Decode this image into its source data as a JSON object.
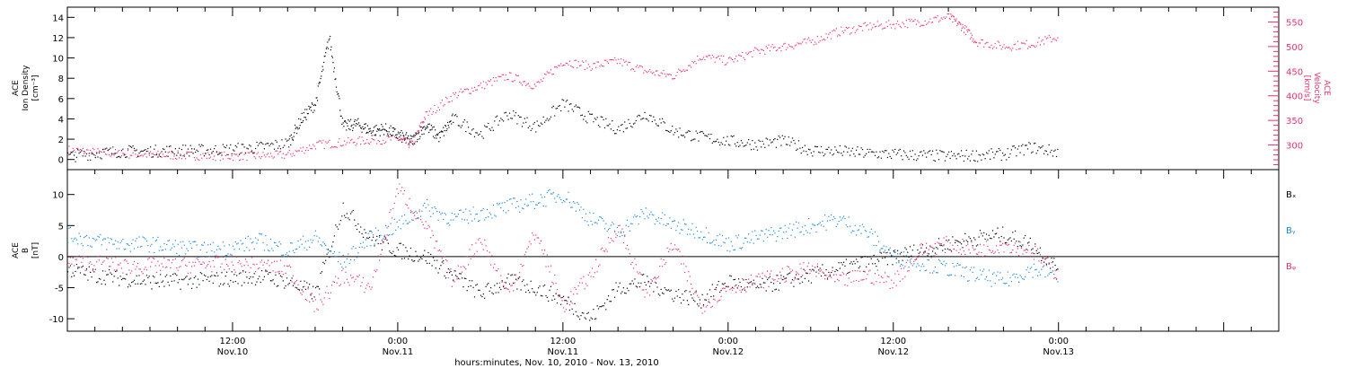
{
  "colors": {
    "black": "#000000",
    "pink": "#e8336b",
    "blue": "#1f86d9"
  },
  "time_axis": {
    "start_hour": 0,
    "end_hour": 88,
    "xlabel": "hours:minutes, Nov. 10, 2010 - Nov. 13, 2010",
    "major_ticks": [
      {
        "time": "12:00",
        "date": "Nov.10",
        "hour": 12
      },
      {
        "time": "0:00",
        "date": "Nov.11",
        "hour": 24
      },
      {
        "time": "12:00",
        "date": "Nov.11",
        "hour": 36
      },
      {
        "time": "0:00",
        "date": "Nov.12",
        "hour": 48
      },
      {
        "time": "12:00",
        "date": "Nov.12",
        "hour": 60
      },
      {
        "time": "0:00",
        "date": "Nov.13",
        "hour": 72
      }
    ]
  },
  "chart_data": [
    {
      "type": "scatter",
      "panel": "top",
      "ylabel": [
        "ACE",
        "Ion Density",
        "[cm⁻³]"
      ],
      "ylim": [
        -1,
        15
      ],
      "yticks": [
        0,
        2,
        4,
        6,
        8,
        10,
        12,
        14
      ],
      "y2label": [
        "ACE",
        "Velocity",
        "[km/s]"
      ],
      "y2lim": [
        250,
        580
      ],
      "y2ticks": [
        300,
        350,
        400,
        450,
        500,
        550
      ],
      "series": [
        {
          "color": "black",
          "axis": "left",
          "x": [
            0,
            2,
            4,
            6,
            8,
            10,
            12,
            14,
            16,
            17,
            18,
            19,
            20,
            21,
            22,
            23,
            24,
            25,
            26,
            27,
            28,
            30,
            32,
            34,
            36,
            38,
            40,
            42,
            44,
            46,
            48,
            50,
            52,
            54,
            56,
            58,
            60,
            62,
            64,
            66,
            68,
            70,
            72
          ],
          "y": [
            0.3,
            0.6,
            0.8,
            0.8,
            0.9,
            0.9,
            1.0,
            1.2,
            1.6,
            4.0,
            5.5,
            12.0,
            3.2,
            3.5,
            2.8,
            3.0,
            2.4,
            1.8,
            3.3,
            2.2,
            4.0,
            2.5,
            4.5,
            3.2,
            5.5,
            4.0,
            3.0,
            4.5,
            2.8,
            2.2,
            1.8,
            1.5,
            1.8,
            0.9,
            0.8,
            0.6,
            0.5,
            0.4,
            0.3,
            0.4,
            0.5,
            1.2,
            0.7
          ]
        },
        {
          "color": "pink",
          "axis": "right",
          "x": [
            0,
            2,
            4,
            6,
            8,
            10,
            12,
            14,
            16,
            18,
            20,
            22,
            24,
            25,
            26,
            28,
            30,
            32,
            34,
            36,
            38,
            40,
            42,
            44,
            46,
            48,
            50,
            52,
            54,
            56,
            58,
            60,
            62,
            64,
            65,
            66,
            68,
            70,
            72
          ],
          "y": [
            290,
            285,
            282,
            280,
            279,
            278,
            277,
            278,
            280,
            300,
            305,
            310,
            312,
            300,
            360,
            400,
            420,
            440,
            420,
            470,
            460,
            470,
            450,
            440,
            480,
            470,
            490,
            500,
            510,
            530,
            540,
            545,
            550,
            560,
            540,
            510,
            500,
            505,
            520
          ]
        }
      ]
    },
    {
      "type": "scatter",
      "panel": "bottom",
      "ylabel": [
        "ACE",
        "B",
        "[nT]"
      ],
      "ylim": [
        -12,
        14
      ],
      "yticks": [
        -10,
        -5,
        0,
        5,
        10
      ],
      "series": [
        {
          "name": "Bₓ",
          "color": "black",
          "x": [
            0,
            2,
            4,
            6,
            8,
            10,
            12,
            14,
            16,
            18,
            20,
            22,
            24,
            26,
            28,
            30,
            32,
            34,
            36,
            38,
            40,
            42,
            44,
            46,
            48,
            50,
            52,
            54,
            56,
            58,
            60,
            62,
            64,
            66,
            68,
            70,
            72
          ],
          "y": [
            -2,
            -3,
            -3.5,
            -4,
            -4,
            -3.8,
            -3.5,
            -3.2,
            -4,
            -6,
            8,
            3,
            1,
            0,
            -3,
            -6,
            -4,
            -5,
            -7,
            -10,
            -5,
            -4,
            -6,
            -7,
            -4,
            -5,
            -4,
            -3,
            -2,
            -1,
            0,
            1,
            2,
            3,
            3.5,
            2,
            -2
          ]
        },
        {
          "name": "Bᵧ",
          "color": "blue",
          "x": [
            0,
            2,
            4,
            6,
            8,
            10,
            12,
            14,
            16,
            18,
            20,
            22,
            24,
            26,
            28,
            30,
            32,
            34,
            36,
            38,
            40,
            42,
            44,
            46,
            48,
            50,
            52,
            54,
            56,
            58,
            60,
            62,
            64,
            66,
            68,
            70,
            72
          ],
          "y": [
            3.5,
            2.5,
            2,
            2,
            1.5,
            1,
            1.5,
            2.5,
            1,
            3,
            -1,
            3,
            5,
            8,
            6,
            7,
            8,
            9,
            10,
            6,
            4,
            7,
            5,
            4,
            2,
            3,
            4,
            5,
            6,
            4,
            0,
            -1,
            -2,
            -3,
            -4,
            -2,
            -3
          ]
        },
        {
          "name": "Bᵩ",
          "color": "pink",
          "x": [
            0,
            2,
            4,
            6,
            8,
            10,
            12,
            14,
            16,
            18,
            20,
            22,
            24,
            26,
            28,
            30,
            32,
            34,
            36,
            38,
            40,
            42,
            44,
            46,
            48,
            50,
            52,
            54,
            56,
            58,
            60,
            62,
            64,
            66,
            68,
            70,
            72
          ],
          "y": [
            -1,
            -1,
            -1.5,
            -1.5,
            -1.5,
            -1.2,
            -1.2,
            -1.5,
            -2,
            -8,
            -3,
            -5,
            11,
            5,
            -4,
            3,
            -6,
            4,
            -8,
            -3,
            5,
            -6,
            2,
            -8,
            -5,
            -4,
            -3,
            -2,
            -4,
            -3,
            -4,
            1,
            2,
            1,
            2,
            1,
            -3
          ]
        }
      ]
    }
  ]
}
